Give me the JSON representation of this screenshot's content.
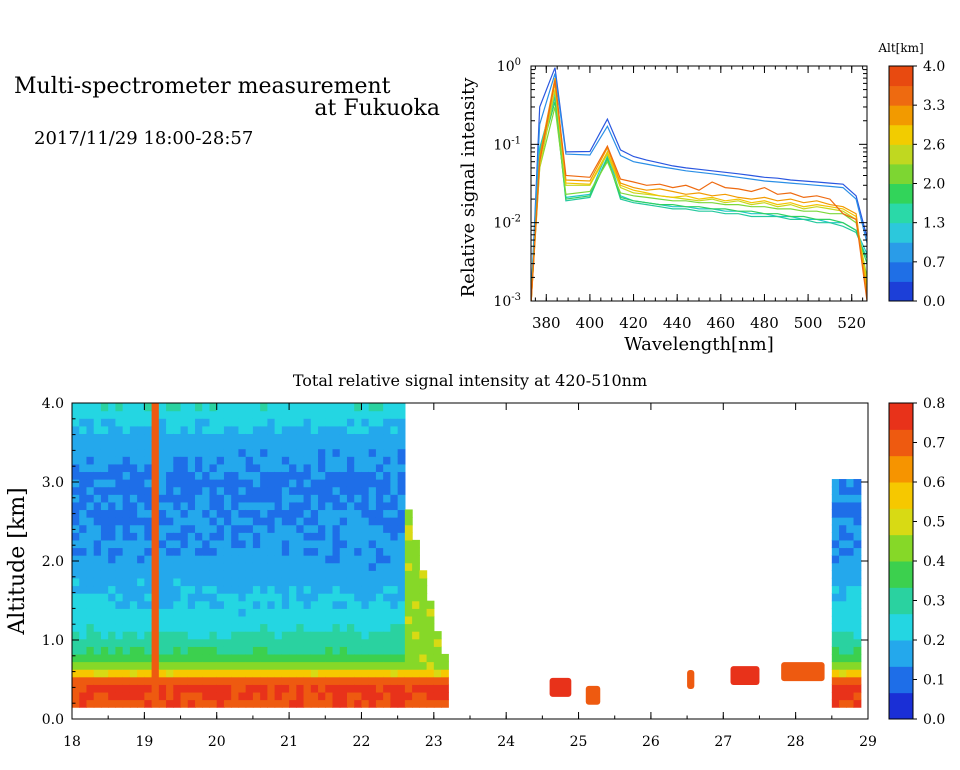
{
  "header": {
    "title_line1": "Multi-spectrometer measurement",
    "title_line2": "at Fukuoka",
    "datetime": "2017/11/29 18:00-28:57"
  },
  "chart_data": [
    {
      "type": "line",
      "xlabel": "Wavelength[nm]",
      "ylabel": "Relative signal intensity",
      "xlim": [
        373,
        527
      ],
      "ylim": [
        0.001,
        1
      ],
      "yscale": "log",
      "x_ticks": [
        380,
        400,
        420,
        440,
        460,
        480,
        500,
        520
      ],
      "y_ticks": [
        {
          "value": 0.001,
          "base": "10",
          "exp": "-3"
        },
        {
          "value": 0.01,
          "base": "10",
          "exp": "-2"
        },
        {
          "value": 0.1,
          "base": "10",
          "exp": "-1"
        },
        {
          "value": 1,
          "base": "10",
          "exp": "0"
        }
      ],
      "x": [
        373,
        377,
        384,
        389,
        400,
        408,
        414,
        420,
        426,
        432,
        438,
        444,
        450,
        456,
        462,
        468,
        474,
        480,
        486,
        492,
        498,
        504,
        510,
        516,
        522,
        527
      ],
      "series": [
        {
          "alt": 0.3,
          "color": "#2a57e0",
          "values": [
            0.0009,
            0.3,
            0.95,
            0.08,
            0.081,
            0.21,
            0.085,
            0.07,
            0.063,
            0.058,
            0.053,
            0.05,
            0.048,
            0.046,
            0.044,
            0.042,
            0.04,
            0.038,
            0.037,
            0.035,
            0.034,
            0.033,
            0.032,
            0.031,
            0.022,
            0.0065
          ]
        },
        {
          "alt": 0.7,
          "color": "#2a8fe6",
          "values": [
            0.0011,
            0.18,
            0.8,
            0.075,
            0.073,
            0.17,
            0.072,
            0.06,
            0.056,
            0.052,
            0.049,
            0.046,
            0.044,
            0.042,
            0.04,
            0.038,
            0.036,
            0.034,
            0.033,
            0.032,
            0.031,
            0.03,
            0.029,
            0.028,
            0.02,
            0.0055
          ]
        },
        {
          "alt": 1.0,
          "color": "#20c8c8",
          "values": [
            0.001,
            0.09,
            0.45,
            0.021,
            0.023,
            0.08,
            0.022,
            0.019,
            0.018,
            0.017,
            0.016,
            0.016,
            0.015,
            0.015,
            0.014,
            0.014,
            0.013,
            0.013,
            0.012,
            0.012,
            0.011,
            0.011,
            0.01,
            0.01,
            0.008,
            0.004
          ]
        },
        {
          "alt": 1.3,
          "color": "#25c99e",
          "values": [
            0.001,
            0.08,
            0.4,
            0.019,
            0.021,
            0.07,
            0.02,
            0.018,
            0.017,
            0.016,
            0.015,
            0.015,
            0.014,
            0.014,
            0.013,
            0.013,
            0.012,
            0.012,
            0.012,
            0.011,
            0.011,
            0.01,
            0.01,
            0.009,
            0.0075,
            0.0035
          ]
        },
        {
          "alt": 1.6,
          "color": "#30d060",
          "values": [
            0.001,
            0.07,
            0.35,
            0.02,
            0.022,
            0.065,
            0.021,
            0.019,
            0.018,
            0.017,
            0.017,
            0.016,
            0.016,
            0.015,
            0.015,
            0.014,
            0.014,
            0.013,
            0.013,
            0.012,
            0.012,
            0.011,
            0.011,
            0.01,
            0.008,
            0.003
          ]
        },
        {
          "alt": 2.0,
          "color": "#7cd83a",
          "values": [
            0.001,
            0.05,
            0.3,
            0.023,
            0.025,
            0.06,
            0.024,
            0.022,
            0.021,
            0.02,
            0.019,
            0.019,
            0.018,
            0.018,
            0.017,
            0.017,
            0.016,
            0.016,
            0.015,
            0.015,
            0.014,
            0.014,
            0.013,
            0.013,
            0.01,
            0.002
          ]
        },
        {
          "alt": 2.6,
          "color": "#c8d61c",
          "values": [
            0.0009,
            0.05,
            0.5,
            0.03,
            0.03,
            0.075,
            0.028,
            0.024,
            0.023,
            0.022,
            0.021,
            0.02,
            0.019,
            0.02,
            0.018,
            0.019,
            0.017,
            0.018,
            0.016,
            0.017,
            0.015,
            0.016,
            0.015,
            0.014,
            0.011,
            0.0018
          ]
        },
        {
          "alt": 3.0,
          "color": "#f2c400",
          "values": [
            0.0009,
            0.06,
            0.6,
            0.032,
            0.031,
            0.08,
            0.03,
            0.026,
            0.024,
            0.022,
            0.021,
            0.022,
            0.02,
            0.021,
            0.019,
            0.02,
            0.018,
            0.019,
            0.017,
            0.018,
            0.016,
            0.017,
            0.016,
            0.015,
            0.012,
            0.0015
          ]
        },
        {
          "alt": 3.3,
          "color": "#f29a00",
          "values": [
            0.0009,
            0.07,
            0.7,
            0.035,
            0.034,
            0.09,
            0.032,
            0.028,
            0.026,
            0.027,
            0.025,
            0.023,
            0.024,
            0.022,
            0.023,
            0.021,
            0.02,
            0.021,
            0.019,
            0.02,
            0.018,
            0.019,
            0.017,
            0.016,
            0.013,
            0.0012
          ]
        },
        {
          "alt": 3.7,
          "color": "#ee6a10",
          "values": [
            0.0009,
            0.06,
            0.65,
            0.04,
            0.038,
            0.095,
            0.036,
            0.033,
            0.03,
            0.031,
            0.028,
            0.03,
            0.026,
            0.033,
            0.028,
            0.027,
            0.025,
            0.028,
            0.023,
            0.024,
            0.021,
            0.022,
            0.02,
            0.013,
            0.011,
            0.001
          ]
        }
      ],
      "colorbar": {
        "label": "Alt[km]",
        "ticks": [
          "0.0",
          "0.7",
          "1.3",
          "2.0",
          "2.6",
          "3.3",
          "4.0"
        ],
        "colors": [
          "#1c3fd8",
          "#1f6fe6",
          "#2a9ce8",
          "#2cc8dc",
          "#2ad9a8",
          "#32d45a",
          "#7dd632",
          "#c0d820",
          "#f2cc00",
          "#f29a00",
          "#ee6a10",
          "#e84a10"
        ]
      }
    },
    {
      "type": "heatmap",
      "title": "Total relative signal intensity at 420-510nm",
      "xlabel": "",
      "ylabel": "Altitude [km]",
      "xlim": [
        18,
        29
      ],
      "ylim": [
        0,
        4
      ],
      "x_ticks": [
        "18",
        "19",
        "20",
        "21",
        "22",
        "23",
        "24",
        "25",
        "26",
        "27",
        "28",
        "29"
      ],
      "y_ticks": [
        "0.0",
        "1.0",
        "2.0",
        "3.0",
        "4.0"
      ],
      "measurement_top_km": 4.0,
      "measurement_bottom_km": 0.15,
      "profile": [
        {
          "alt": 0.15,
          "value": 0.72
        },
        {
          "alt": 0.45,
          "value": 0.75
        },
        {
          "alt": 0.65,
          "value": 0.45
        },
        {
          "alt": 0.85,
          "value": 0.33
        },
        {
          "alt": 1.2,
          "value": 0.24
        },
        {
          "alt": 2.0,
          "value": 0.15
        },
        {
          "alt": 3.0,
          "value": 0.12
        },
        {
          "alt": 3.5,
          "value": 0.16
        },
        {
          "alt": 4.0,
          "value": 0.26
        }
      ],
      "cloud_column": {
        "time": 19.15,
        "value": 0.7
      },
      "data_gap": {
        "start": 23.2,
        "end": 28.5,
        "cloud_edge_time": 22.6
      },
      "low_cloud_patches": [
        {
          "t0": 24.6,
          "t1": 24.9,
          "alt": 0.4,
          "value": 0.75
        },
        {
          "t0": 25.1,
          "t1": 25.3,
          "alt": 0.3,
          "value": 0.7
        },
        {
          "t0": 26.5,
          "t1": 26.6,
          "alt": 0.5,
          "value": 0.7
        },
        {
          "t0": 27.1,
          "t1": 27.5,
          "alt": 0.55,
          "value": 0.75
        },
        {
          "t0": 27.8,
          "t1": 28.4,
          "alt": 0.6,
          "value": 0.72
        }
      ],
      "colorbar": {
        "ticks": [
          "0.0",
          "0.1",
          "0.2",
          "0.3",
          "0.4",
          "0.5",
          "0.6",
          "0.7",
          "0.8"
        ],
        "min": 0,
        "max": 0.8,
        "colors": [
          "#1a2fd6",
          "#1e6ee8",
          "#24a8ec",
          "#24d6e2",
          "#2ad2a0",
          "#3cd04e",
          "#86d828",
          "#d8da14",
          "#f6c800",
          "#f69400",
          "#ee5a10",
          "#e8321a"
        ]
      }
    }
  ]
}
